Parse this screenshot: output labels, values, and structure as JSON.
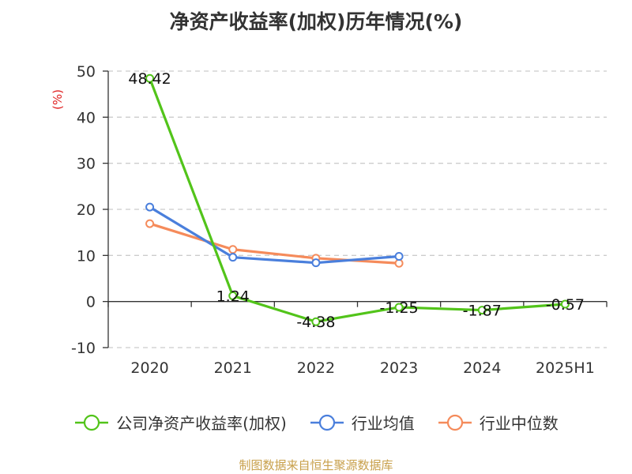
{
  "chart_data": {
    "type": "line",
    "title": "净资产收益率(加权)历年情况(%)",
    "ylabel": "(%)",
    "xlabel": "",
    "categories": [
      "2020",
      "2021",
      "2022",
      "2023",
      "2024",
      "2025H1"
    ],
    "ylim": [
      -10,
      50
    ],
    "yticks": [
      -10,
      0,
      10,
      20,
      30,
      40,
      50
    ],
    "grid": true,
    "legend_position": "bottom",
    "series": [
      {
        "name": "公司净资产收益率(加权)",
        "color": "#52c41a",
        "values": [
          48.42,
          1.24,
          -4.38,
          -1.25,
          -1.87,
          -0.57
        ],
        "labels": [
          "48.42",
          "1.24",
          "-4.38",
          "-1.25",
          "-1.87",
          "-0.57"
        ]
      },
      {
        "name": "行业均值",
        "color": "#4a7fdc",
        "values": [
          20.5,
          9.6,
          8.4,
          9.8,
          null,
          null
        ]
      },
      {
        "name": "行业中位数",
        "color": "#f58b5b",
        "values": [
          16.9,
          11.3,
          9.4,
          8.3,
          null,
          null
        ]
      }
    ]
  },
  "source": "制图数据来自恒生聚源数据库"
}
